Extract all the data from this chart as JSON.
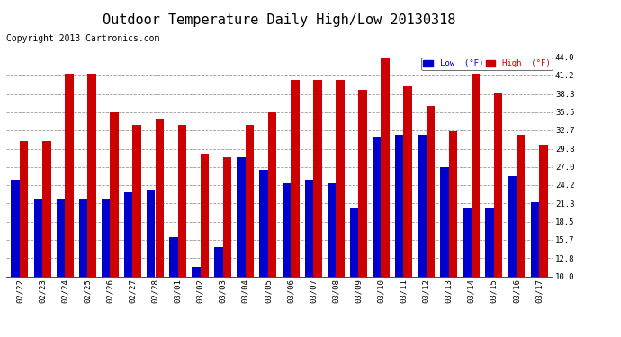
{
  "title": "Outdoor Temperature Daily High/Low 20130318",
  "copyright": "Copyright 2013 Cartronics.com",
  "ylabel_right_ticks": [
    10.0,
    12.8,
    15.7,
    18.5,
    21.3,
    24.2,
    27.0,
    29.8,
    32.7,
    35.5,
    38.3,
    41.2,
    44.0
  ],
  "dates": [
    "02/22",
    "02/23",
    "02/24",
    "02/25",
    "02/26",
    "02/27",
    "02/28",
    "03/01",
    "03/02",
    "03/03",
    "03/04",
    "03/05",
    "03/06",
    "03/07",
    "03/08",
    "03/09",
    "03/10",
    "03/11",
    "03/12",
    "03/13",
    "03/14",
    "03/15",
    "03/16",
    "03/17"
  ],
  "low_values": [
    25.0,
    22.0,
    22.0,
    22.0,
    22.0,
    23.0,
    23.5,
    16.0,
    11.5,
    14.5,
    28.5,
    26.5,
    24.5,
    25.0,
    24.5,
    20.5,
    31.5,
    32.0,
    32.0,
    27.0,
    20.5,
    20.5,
    25.5,
    21.5
  ],
  "high_values": [
    31.0,
    31.0,
    41.5,
    41.5,
    35.5,
    33.5,
    34.5,
    33.5,
    29.0,
    28.5,
    33.5,
    35.5,
    40.5,
    40.5,
    40.5,
    39.0,
    44.0,
    39.5,
    36.5,
    32.5,
    41.5,
    38.5,
    32.0,
    30.5
  ],
  "low_color": "#0000cc",
  "high_color": "#cc0000",
  "bg_color": "#ffffff",
  "plot_bg_color": "#ffffff",
  "grid_color": "#999999",
  "ylim_min": 10.0,
  "ylim_max": 44.0,
  "title_fontsize": 11,
  "copyright_fontsize": 7,
  "bar_width": 0.38,
  "legend_low_label": "Low  (°F)",
  "legend_high_label": "High  (°F)"
}
